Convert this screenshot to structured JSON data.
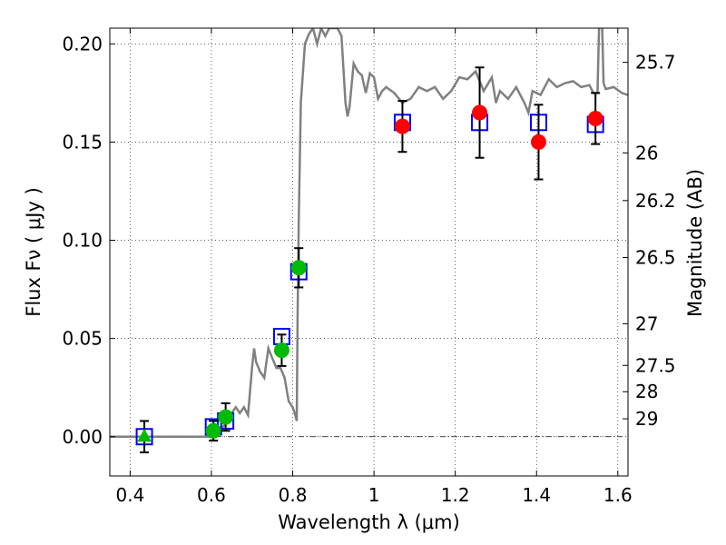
{
  "chart_data": {
    "type": "scatter",
    "title": "",
    "xlabel": "Wavelength  λ (μm)",
    "ylabel": "Flux  Fν  ( μJy )",
    "ylabel_right": "Magnitude (AB)",
    "xlim": [
      0.35,
      1.625
    ],
    "ylim": [
      -0.02,
      0.208
    ],
    "grid": true,
    "x_ticks": [
      {
        "value": 0.4,
        "label": "0.4"
      },
      {
        "value": 0.6,
        "label": "0.6"
      },
      {
        "value": 0.8,
        "label": "0.8"
      },
      {
        "value": 1.0,
        "label": "1"
      },
      {
        "value": 1.2,
        "label": "1.2"
      },
      {
        "value": 1.4,
        "label": "1.4"
      },
      {
        "value": 1.6,
        "label": "1.6"
      }
    ],
    "y_ticks": [
      {
        "value": 0.0,
        "label": "0.00"
      },
      {
        "value": 0.05,
        "label": "0.05"
      },
      {
        "value": 0.1,
        "label": "0.10"
      },
      {
        "value": 0.15,
        "label": "0.15"
      },
      {
        "value": 0.2,
        "label": "0.20"
      }
    ],
    "mag_ticks": [
      {
        "value": 0.1906,
        "label": "25.7"
      },
      {
        "value": 0.1445,
        "label": "26"
      },
      {
        "value": 0.1202,
        "label": "26.2"
      },
      {
        "value": 0.0912,
        "label": "26.5"
      },
      {
        "value": 0.0575,
        "label": "27"
      },
      {
        "value": 0.0363,
        "label": "27.5"
      },
      {
        "value": 0.0229,
        "label": "28"
      },
      {
        "value": 0.0091,
        "label": "29"
      }
    ],
    "model_spectrum": {
      "color": "#808080",
      "x": [
        0.35,
        0.55,
        0.6,
        0.62,
        0.64,
        0.65,
        0.66,
        0.67,
        0.68,
        0.69,
        0.7,
        0.705,
        0.71,
        0.72,
        0.73,
        0.74,
        0.75,
        0.76,
        0.77,
        0.78,
        0.79,
        0.8,
        0.805,
        0.81,
        0.812,
        0.815,
        0.82,
        0.83,
        0.84,
        0.85,
        0.86,
        0.87,
        0.88,
        0.89,
        0.9,
        0.91,
        0.92,
        0.93,
        0.935,
        0.94,
        0.95,
        0.96,
        0.97,
        0.98,
        0.99,
        1.0,
        1.01,
        1.02,
        1.03,
        1.05,
        1.07,
        1.09,
        1.11,
        1.13,
        1.15,
        1.17,
        1.19,
        1.21,
        1.23,
        1.25,
        1.27,
        1.29,
        1.3,
        1.31,
        1.33,
        1.35,
        1.37,
        1.38,
        1.39,
        1.41,
        1.43,
        1.45,
        1.47,
        1.49,
        1.51,
        1.53,
        1.54,
        1.55,
        1.555,
        1.56,
        1.565,
        1.57,
        1.59,
        1.61,
        1.625
      ],
      "y": [
        0.0,
        0.0,
        0.0,
        0.003,
        0.008,
        0.012,
        0.015,
        0.012,
        0.015,
        0.011,
        0.035,
        0.045,
        0.038,
        0.033,
        0.03,
        0.045,
        0.04,
        0.035,
        0.035,
        0.03,
        0.018,
        0.015,
        0.012,
        0.008,
        0.06,
        0.11,
        0.17,
        0.2,
        0.205,
        0.208,
        0.2,
        0.208,
        0.204,
        0.208,
        0.208,
        0.208,
        0.204,
        0.17,
        0.163,
        0.168,
        0.19,
        0.186,
        0.184,
        0.175,
        0.185,
        0.183,
        0.172,
        0.176,
        0.178,
        0.175,
        0.17,
        0.172,
        0.178,
        0.176,
        0.178,
        0.172,
        0.176,
        0.183,
        0.182,
        0.186,
        0.176,
        0.183,
        0.17,
        0.176,
        0.172,
        0.178,
        0.17,
        0.165,
        0.176,
        0.174,
        0.182,
        0.178,
        0.18,
        0.181,
        0.178,
        0.179,
        0.175,
        0.175,
        0.22,
        0.22,
        0.18,
        0.177,
        0.178,
        0.175,
        0.174
      ]
    },
    "series": [
      {
        "marker": "square-open",
        "color": "#0000ff",
        "points": [
          {
            "x": 0.435,
            "y": 0.0
          },
          {
            "x": 0.605,
            "y": 0.005
          },
          {
            "x": 0.635,
            "y": 0.008
          },
          {
            "x": 0.773,
            "y": 0.051
          },
          {
            "x": 0.815,
            "y": 0.084
          },
          {
            "x": 1.07,
            "y": 0.16
          },
          {
            "x": 1.26,
            "y": 0.16
          },
          {
            "x": 1.405,
            "y": 0.16
          },
          {
            "x": 1.545,
            "y": 0.159
          }
        ]
      },
      {
        "marker": "circle",
        "color": "#00bb00",
        "points": [
          {
            "x": 0.605,
            "y": 0.003,
            "err": 0.005
          },
          {
            "x": 0.635,
            "y": 0.01,
            "err": 0.007
          },
          {
            "x": 0.773,
            "y": 0.044,
            "err": 0.008
          },
          {
            "x": 0.815,
            "y": 0.086,
            "err": 0.01
          }
        ]
      },
      {
        "marker": "triangle",
        "color": "#00bb00",
        "points": [
          {
            "x": 0.435,
            "y": 0.0,
            "err": 0.008
          }
        ]
      },
      {
        "marker": "circle",
        "color": "#ff0000",
        "points": [
          {
            "x": 1.07,
            "y": 0.158,
            "err": 0.013
          },
          {
            "x": 1.26,
            "y": 0.165,
            "err": 0.023
          },
          {
            "x": 1.405,
            "y": 0.15,
            "err": 0.019
          },
          {
            "x": 1.545,
            "y": 0.162,
            "err": 0.013
          }
        ]
      }
    ]
  }
}
